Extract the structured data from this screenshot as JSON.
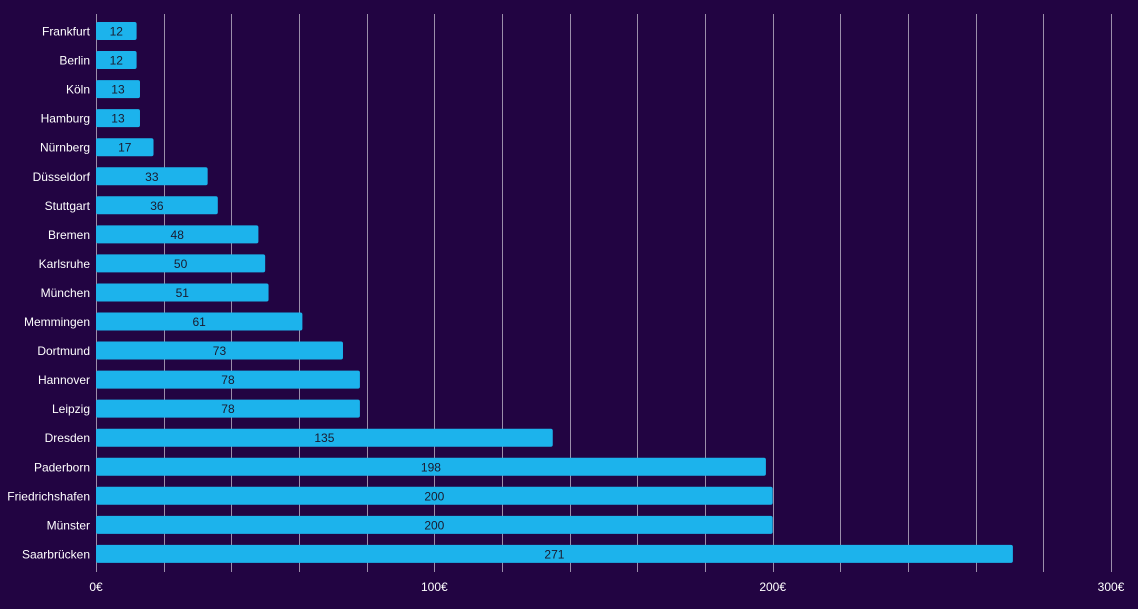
{
  "colors": {
    "background": "#220442",
    "bar": "#1cb3ec",
    "bar_label": "#1a1a2e",
    "grid": "#ffffff",
    "text": "#ffffff"
  },
  "chart_data": {
    "type": "bar",
    "orientation": "horizontal",
    "title": "",
    "xlabel": "",
    "ylabel": "",
    "xlim": [
      0,
      300
    ],
    "grid": true,
    "legend": "none",
    "categories": [
      "Frankfurt",
      "Berlin",
      "Köln",
      "Hamburg",
      "Nürnberg",
      "Düsseldorf",
      "Stuttgart",
      "Bremen",
      "Karlsruhe",
      "München",
      "Memmingen",
      "Dortmund",
      "Hannover",
      "Leipzig",
      "Dresden",
      "Paderborn",
      "Friedrichshafen",
      "Münster",
      "Saarbrücken"
    ],
    "values": [
      12,
      12,
      13,
      13,
      17,
      33,
      36,
      48,
      50,
      51,
      61,
      73,
      78,
      78,
      135,
      198,
      200,
      200,
      271
    ],
    "value_labels": [
      "12",
      "12",
      "13",
      "13",
      "17",
      "33",
      "36",
      "48",
      "50",
      "51",
      "61",
      "73",
      "78",
      "78",
      "135",
      "198",
      "200",
      "200",
      "271"
    ],
    "x_ticks": [
      0,
      100,
      200,
      300
    ],
    "x_tick_labels": [
      "0€",
      "100€",
      "200€",
      "300€"
    ],
    "minor_grid": [
      0,
      20,
      40,
      60,
      80,
      100,
      120,
      140,
      160,
      180,
      200,
      220,
      240,
      260,
      280,
      300
    ]
  }
}
